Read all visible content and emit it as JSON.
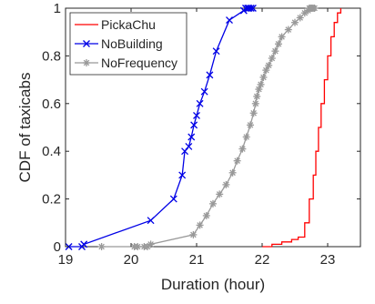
{
  "chart_data": {
    "type": "line",
    "title": "",
    "xlabel": "Duration (hour)",
    "ylabel": "CDF of taxicabs",
    "xlim": [
      19,
      23.5
    ],
    "ylim": [
      0,
      1
    ],
    "xticks": [
      19,
      20,
      21,
      22,
      23
    ],
    "yticks": [
      0,
      0.2,
      0.4,
      0.6,
      0.8,
      1
    ],
    "xtick_labels": [
      "19",
      "20",
      "21",
      "22",
      "23"
    ],
    "ytick_labels": [
      "0",
      "0.2",
      "0.4",
      "0.6",
      "0.8",
      "1"
    ],
    "grid": false,
    "legend_position": "top-left",
    "series": [
      {
        "name": "PickaChu",
        "color": "#ff0000",
        "marker": "none",
        "x": [
          22.0,
          22.15,
          22.3,
          22.45,
          22.55,
          22.65,
          22.72,
          22.78,
          22.82,
          22.86,
          22.9,
          22.95,
          23.0,
          23.05,
          23.1,
          23.15,
          23.2
        ],
        "y": [
          0.0,
          0.01,
          0.02,
          0.03,
          0.04,
          0.1,
          0.2,
          0.3,
          0.4,
          0.5,
          0.6,
          0.7,
          0.8,
          0.88,
          0.94,
          0.98,
          1.0
        ]
      },
      {
        "name": "NoBuilding",
        "color": "#0000e6",
        "marker": "x",
        "x": [
          19.05,
          19.25,
          19.28,
          20.3,
          20.65,
          20.78,
          20.82,
          20.88,
          20.92,
          20.96,
          21.0,
          21.05,
          21.12,
          21.2,
          21.3,
          21.5,
          21.72,
          21.75,
          21.78,
          21.8,
          21.83,
          21.86
        ],
        "y": [
          0.0,
          0.0,
          0.01,
          0.11,
          0.2,
          0.3,
          0.4,
          0.42,
          0.46,
          0.51,
          0.55,
          0.6,
          0.65,
          0.72,
          0.82,
          0.95,
          0.99,
          1.0,
          1.0,
          1.0,
          1.0,
          1.0
        ]
      },
      {
        "name": "NoFrequency",
        "color": "#999999",
        "marker": "*",
        "x": [
          19.55,
          20.05,
          20.1,
          20.2,
          20.25,
          20.3,
          20.95,
          21.05,
          21.15,
          21.25,
          21.35,
          21.45,
          21.55,
          21.62,
          21.7,
          21.76,
          21.82,
          21.87,
          21.9,
          21.92,
          21.95,
          21.98,
          22.02,
          22.06,
          22.1,
          22.15,
          22.2,
          22.25,
          22.3,
          22.4,
          22.5,
          22.58,
          22.65,
          22.7,
          22.72,
          22.74,
          22.76,
          22.78,
          22.8
        ],
        "y": [
          0.0,
          0.0,
          0.0,
          0.0,
          0.0,
          0.01,
          0.05,
          0.09,
          0.13,
          0.18,
          0.22,
          0.26,
          0.31,
          0.36,
          0.41,
          0.46,
          0.51,
          0.56,
          0.6,
          0.63,
          0.66,
          0.68,
          0.71,
          0.74,
          0.76,
          0.79,
          0.82,
          0.85,
          0.88,
          0.91,
          0.94,
          0.96,
          0.98,
          0.99,
          1.0,
          1.0,
          1.0,
          1.0,
          1.0
        ]
      }
    ]
  }
}
